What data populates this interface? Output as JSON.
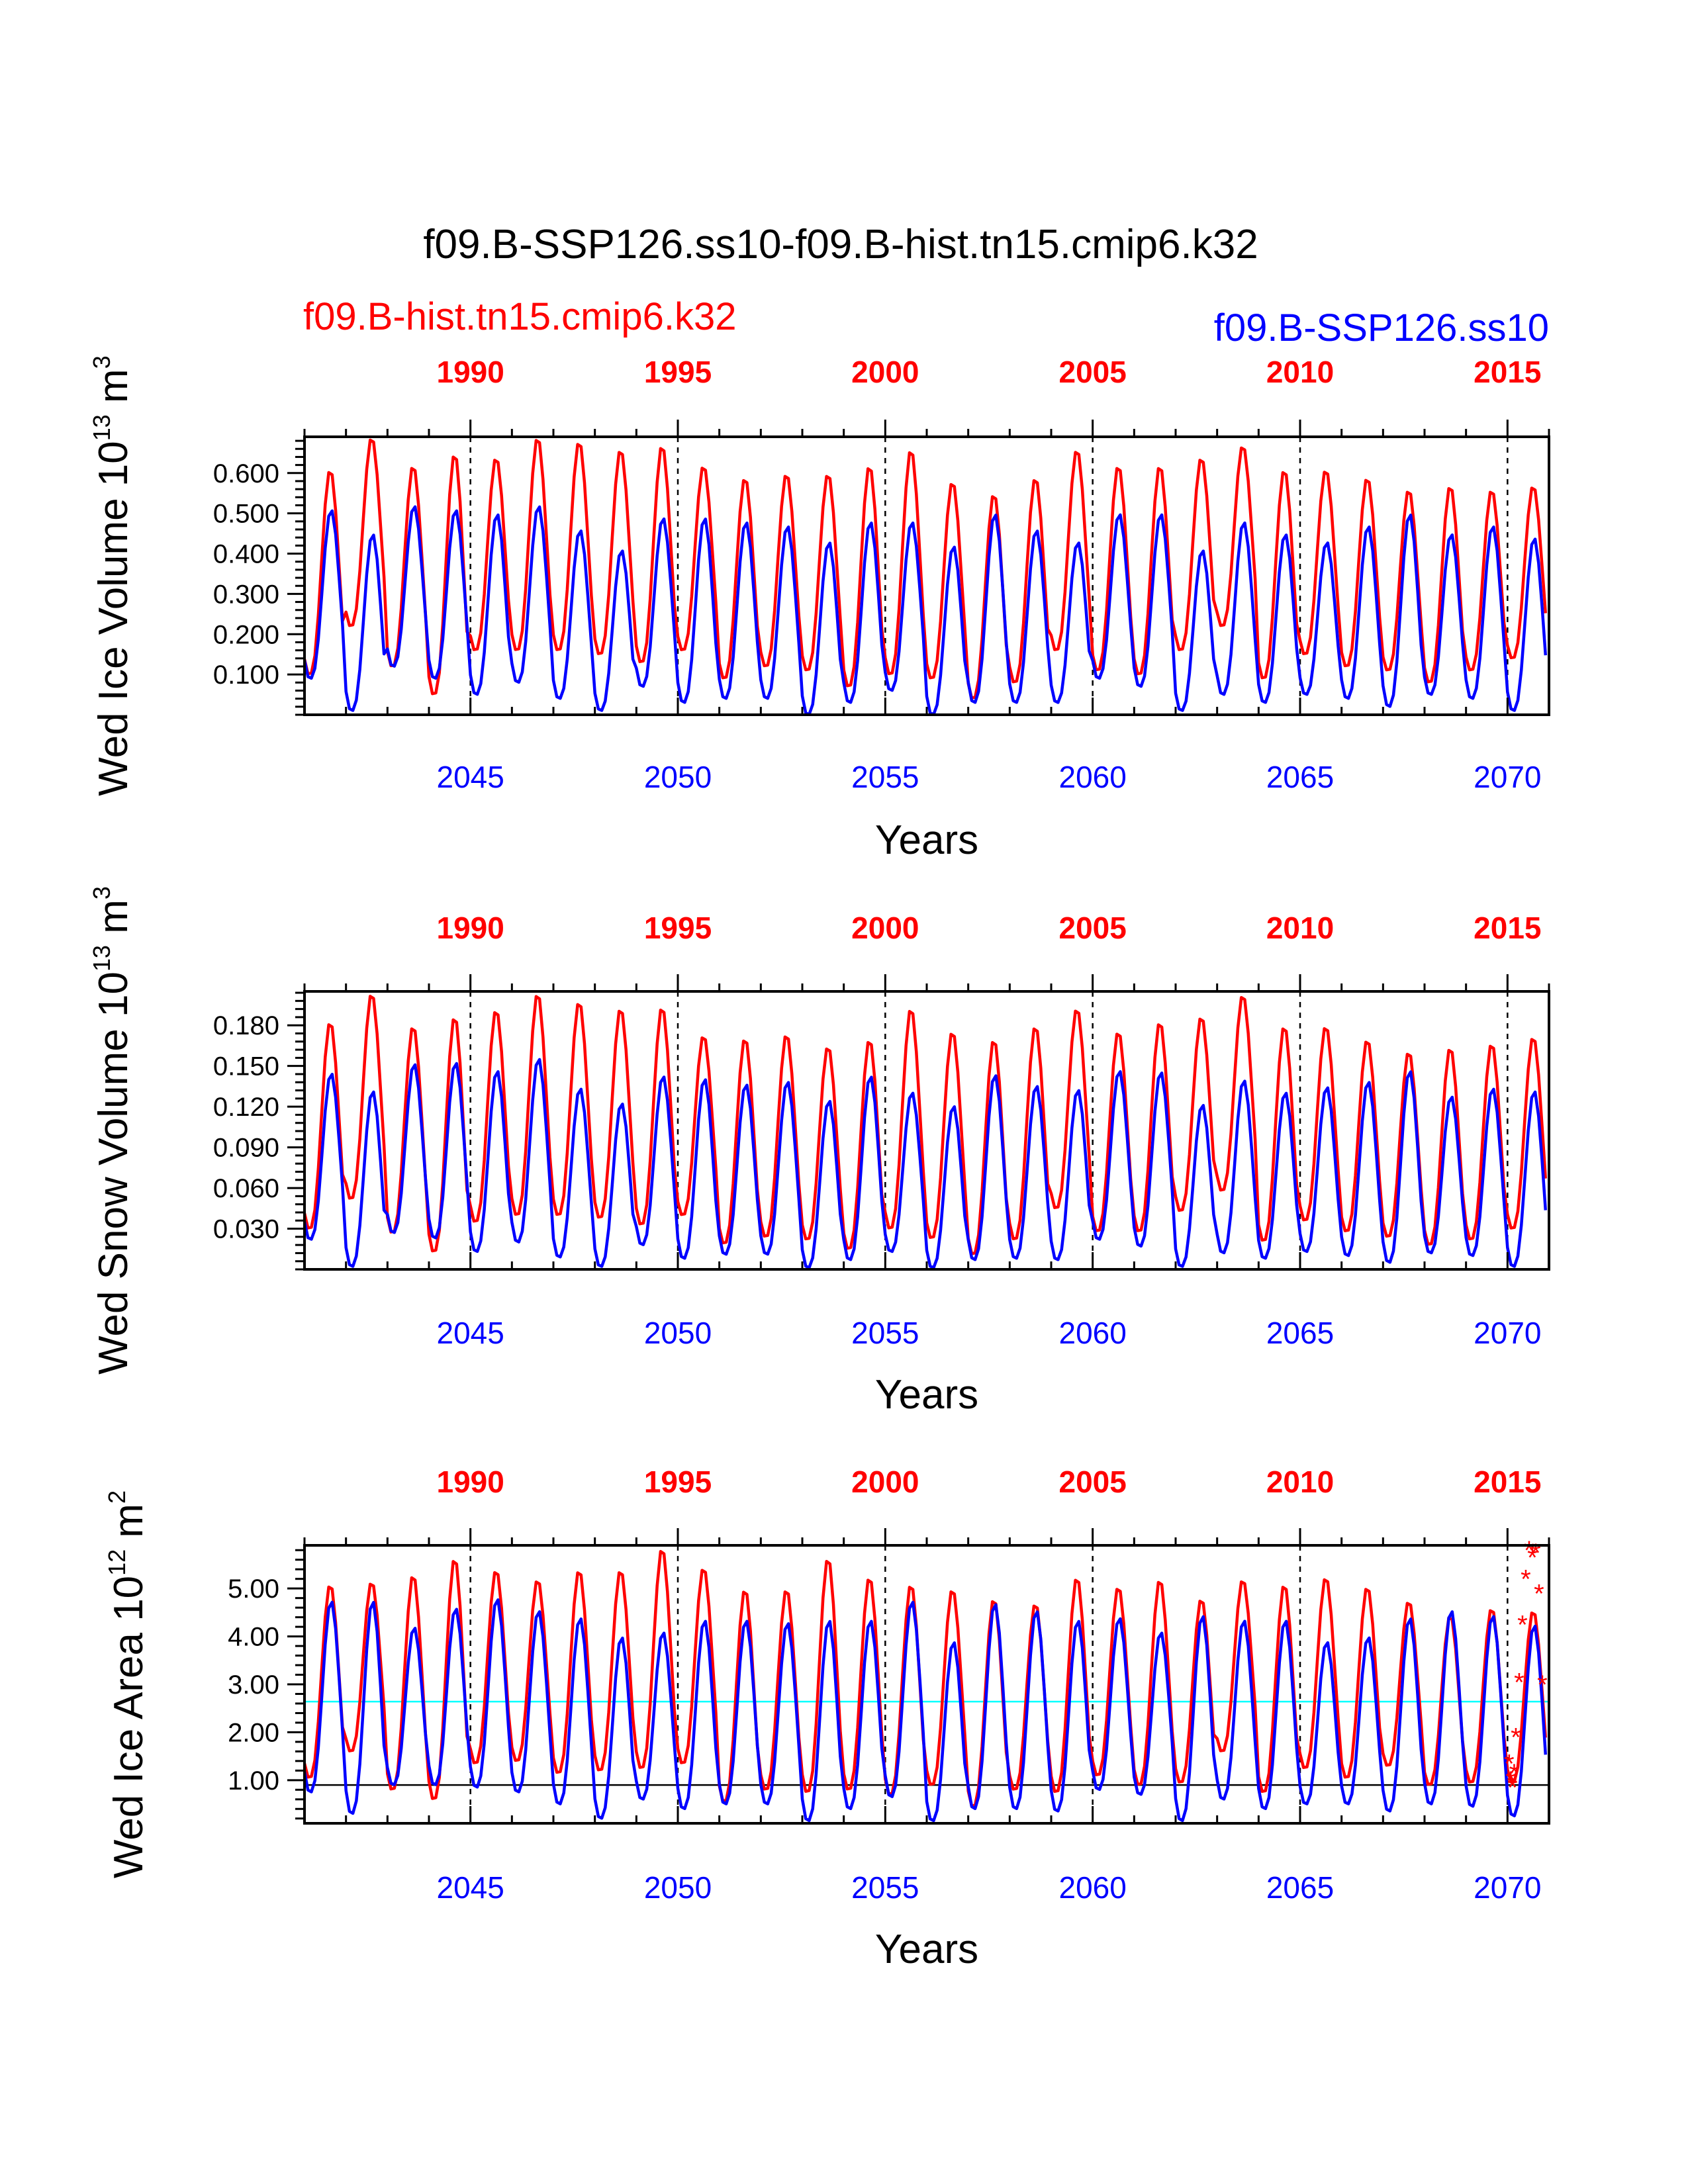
{
  "title": "f09.B-SSP126.ss10-f09.B-hist.tn15.cmip6.k32",
  "legend": {
    "red_label": "f09.B-hist.tn15.cmip6.k32",
    "blue_label": "f09.B-SSP126.ss10"
  },
  "colors": {
    "hist": "#ff0000",
    "ssp": "#0000ff",
    "reference_line": "#00ffff",
    "zero_line": "#000000"
  },
  "chart_data": [
    {
      "type": "line",
      "ylabel": "Wed Ice Volume 10",
      "ylabel_exp": "13",
      "ylabel_unit": "m",
      "ylabel_unit_exp": "3",
      "xlabel": "Years",
      "ylim": [
        0,
        0.69
      ],
      "yticks": [
        0.1,
        0.2,
        0.3,
        0.4,
        0.5,
        0.6
      ],
      "ytick_labels": [
        "0.100",
        "0.200",
        "0.300",
        "0.400",
        "0.500",
        "0.600"
      ],
      "x_bottom": {
        "range": [
          2041,
          2071
        ],
        "ticks": [
          2045,
          2050,
          2055,
          2060,
          2065,
          2070
        ],
        "labels": [
          "2045",
          "2050",
          "2055",
          "2060",
          "2065",
          "2070"
        ]
      },
      "x_top": {
        "range": [
          1986,
          2016
        ],
        "ticks": [
          1990,
          1995,
          2000,
          2005,
          2010,
          2015
        ],
        "labels": [
          "1990",
          "1995",
          "2000",
          "2005",
          "2010",
          "2015"
        ]
      },
      "series": [
        {
          "name": "f09.B-hist.tn15.cmip6.k32",
          "color": "#ff0000",
          "annual_max": [
            0.61,
            0.69,
            0.62,
            0.65,
            0.64,
            0.69,
            0.68,
            0.66,
            0.67,
            0.62,
            0.59,
            0.6,
            0.6,
            0.62,
            0.66,
            0.58,
            0.55,
            0.59,
            0.66,
            0.62,
            0.62,
            0.64,
            0.67,
            0.61,
            0.61,
            0.59,
            0.56,
            0.57,
            0.56,
            0.57
          ],
          "annual_min": [
            0.1,
            0.22,
            0.12,
            0.05,
            0.16,
            0.16,
            0.16,
            0.15,
            0.13,
            0.16,
            0.09,
            0.12,
            0.11,
            0.07,
            0.1,
            0.09,
            0.04,
            0.08,
            0.16,
            0.11,
            0.1,
            0.16,
            0.22,
            0.09,
            0.15,
            0.12,
            0.11,
            0.08,
            0.11,
            0.14
          ]
        },
        {
          "name": "f09.B-SSP126.ss10",
          "color": "#0000ff",
          "annual_max": [
            0.51,
            0.45,
            0.52,
            0.51,
            0.5,
            0.52,
            0.46,
            0.41,
            0.49,
            0.49,
            0.48,
            0.47,
            0.43,
            0.48,
            0.48,
            0.42,
            0.5,
            0.46,
            0.43,
            0.5,
            0.5,
            0.41,
            0.48,
            0.45,
            0.43,
            0.47,
            0.5,
            0.45,
            0.47,
            0.44
          ],
          "annual_min": [
            0.09,
            0.01,
            0.12,
            0.09,
            0.05,
            0.08,
            0.04,
            0.01,
            0.07,
            0.03,
            0.04,
            0.04,
            0.0,
            0.03,
            0.06,
            0.0,
            0.03,
            0.03,
            0.03,
            0.09,
            0.07,
            0.01,
            0.05,
            0.03,
            0.05,
            0.04,
            0.02,
            0.05,
            0.04,
            0.01
          ]
        }
      ]
    },
    {
      "type": "line",
      "ylabel": "Wed Snow Volume 10",
      "ylabel_exp": "13",
      "ylabel_unit": "m",
      "ylabel_unit_exp": "3",
      "xlabel": "Years",
      "ylim": [
        0,
        0.205
      ],
      "yticks": [
        0.03,
        0.06,
        0.09,
        0.12,
        0.15,
        0.18
      ],
      "ytick_labels": [
        "0.030",
        "0.060",
        "0.090",
        "0.120",
        "0.150",
        "0.180"
      ],
      "x_bottom": {
        "range": [
          2041,
          2071
        ],
        "ticks": [
          2045,
          2050,
          2055,
          2060,
          2065,
          2070
        ],
        "labels": [
          "2045",
          "2050",
          "2055",
          "2060",
          "2065",
          "2070"
        ]
      },
      "x_top": {
        "range": [
          1986,
          2016
        ],
        "ticks": [
          1990,
          1995,
          2000,
          2005,
          2010,
          2015
        ],
        "labels": [
          "1990",
          "1995",
          "2000",
          "2005",
          "2010",
          "2015"
        ]
      },
      "series": [
        {
          "name": "f09.B-hist.tn15.cmip6.k32",
          "color": "#ff0000",
          "annual_max": [
            0.183,
            0.204,
            0.18,
            0.187,
            0.192,
            0.204,
            0.198,
            0.193,
            0.194,
            0.173,
            0.171,
            0.174,
            0.165,
            0.17,
            0.193,
            0.176,
            0.17,
            0.18,
            0.193,
            0.176,
            0.183,
            0.187,
            0.203,
            0.18,
            0.18,
            0.17,
            0.161,
            0.164,
            0.167,
            0.172
          ],
          "annual_min": [
            0.03,
            0.052,
            0.027,
            0.013,
            0.035,
            0.04,
            0.04,
            0.038,
            0.033,
            0.04,
            0.019,
            0.024,
            0.022,
            0.015,
            0.03,
            0.023,
            0.011,
            0.022,
            0.045,
            0.028,
            0.028,
            0.043,
            0.058,
            0.021,
            0.036,
            0.028,
            0.024,
            0.018,
            0.022,
            0.03
          ]
        },
        {
          "name": "f09.B-SSP126.ss10",
          "color": "#0000ff",
          "annual_max": [
            0.145,
            0.132,
            0.152,
            0.153,
            0.147,
            0.156,
            0.134,
            0.123,
            0.143,
            0.141,
            0.137,
            0.139,
            0.125,
            0.143,
            0.131,
            0.121,
            0.144,
            0.136,
            0.133,
            0.147,
            0.146,
            0.122,
            0.14,
            0.131,
            0.135,
            0.139,
            0.147,
            0.128,
            0.134,
            0.132
          ],
          "annual_min": [
            0.022,
            0.002,
            0.027,
            0.023,
            0.013,
            0.02,
            0.009,
            0.002,
            0.018,
            0.008,
            0.011,
            0.011,
            0.001,
            0.007,
            0.013,
            0.001,
            0.007,
            0.008,
            0.007,
            0.022,
            0.017,
            0.002,
            0.012,
            0.008,
            0.013,
            0.01,
            0.005,
            0.012,
            0.01,
            0.002
          ]
        }
      ]
    },
    {
      "type": "line",
      "ylabel": "Wed Ice Area 10",
      "ylabel_exp": "12",
      "ylabel_unit": "m",
      "ylabel_unit_exp": "2",
      "xlabel": "Years",
      "ylim": [
        0.1,
        5.9
      ],
      "yticks": [
        1,
        2,
        3,
        4,
        5
      ],
      "ytick_labels": [
        "1.00",
        "2.00",
        "3.00",
        "4.00",
        "5.00"
      ],
      "reference_lines": [
        {
          "y": 0.9,
          "color": "#000000"
        },
        {
          "y": 2.64,
          "color": "#00ffff"
        }
      ],
      "x_bottom": {
        "range": [
          2041,
          2071
        ],
        "ticks": [
          2045,
          2050,
          2055,
          2060,
          2065,
          2070
        ],
        "labels": [
          "2045",
          "2050",
          "2055",
          "2060",
          "2065",
          "2070"
        ]
      },
      "x_top": {
        "range": [
          1986,
          2016
        ],
        "ticks": [
          1990,
          1995,
          2000,
          2005,
          2010,
          2015
        ],
        "labels": [
          "1990",
          "1995",
          "2000",
          "2005",
          "2010",
          "2015"
        ]
      },
      "series": [
        {
          "name": "f09.B-hist.tn15.cmip6.k32",
          "color": "#ff0000",
          "annual_max": [
            5.1,
            5.15,
            5.3,
            5.65,
            5.4,
            5.2,
            5.4,
            5.4,
            5.85,
            5.45,
            5.0,
            5.0,
            5.65,
            5.25,
            5.1,
            5.0,
            4.8,
            4.7,
            5.25,
            5.05,
            5.2,
            4.8,
            5.2,
            5.1,
            5.25,
            5.05,
            4.75,
            4.45,
            4.6,
            4.55
          ],
          "annual_min": [
            1.05,
            1.6,
            0.8,
            0.6,
            1.35,
            1.4,
            1.15,
            1.2,
            1.25,
            1.35,
            0.55,
            0.8,
            0.75,
            0.8,
            0.7,
            0.9,
            0.45,
            0.8,
            0.75,
            1.1,
            0.9,
            0.95,
            1.6,
            0.75,
            1.25,
            1.05,
            1.3,
            0.9,
            0.95,
            0.95
          ]
        },
        {
          "name": "f09.B-SSP126.ss10",
          "color": "#0000ff",
          "annual_max": [
            4.75,
            4.75,
            4.2,
            4.6,
            4.8,
            4.55,
            4.4,
            4.0,
            4.1,
            4.35,
            4.35,
            4.3,
            4.35,
            4.35,
            4.75,
            3.9,
            4.7,
            4.55,
            4.35,
            4.4,
            4.1,
            4.45,
            4.35,
            4.35,
            3.9,
            4.0,
            4.4,
            4.55,
            4.45,
            4.25
          ],
          "annual_min": [
            0.75,
            0.3,
            0.9,
            0.9,
            0.85,
            0.75,
            0.5,
            0.2,
            0.6,
            0.4,
            0.5,
            0.5,
            0.15,
            0.4,
            0.65,
            0.15,
            0.4,
            0.4,
            0.35,
            0.8,
            0.7,
            0.15,
            0.6,
            0.4,
            0.5,
            0.5,
            0.35,
            0.5,
            0.45,
            0.25
          ]
        }
      ],
      "markers": {
        "name": "f09.B-hist.tn15.cmip6.k32",
        "symbol": "*",
        "color": "#ff0000",
        "points": [
          [
            2015.04,
            1.35
          ],
          [
            2015.08,
            1.0
          ],
          [
            2015.12,
            0.85
          ],
          [
            2015.16,
            1.15
          ],
          [
            2015.2,
            1.9
          ],
          [
            2015.28,
            3.05
          ],
          [
            2015.36,
            4.25
          ],
          [
            2015.44,
            5.2
          ],
          [
            2015.52,
            5.8
          ],
          [
            2015.6,
            5.65
          ],
          [
            2015.68,
            5.75
          ],
          [
            2015.76,
            4.9
          ],
          [
            2015.84,
            3.0
          ]
        ]
      }
    }
  ]
}
